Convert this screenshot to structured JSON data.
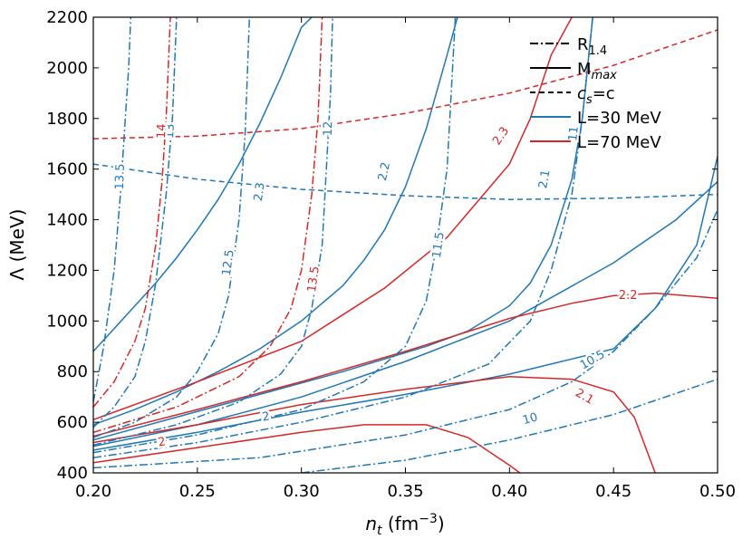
{
  "chart_data": {
    "type": "line",
    "title": "",
    "xlabel": "n",
    "xlabel_sub": "t",
    "xlabel_unit": " (fm",
    "xlabel_exp": "−3",
    "xlabel_close": ")",
    "ylabel": "Λ (MeV)",
    "xlim": [
      0.2,
      0.5
    ],
    "ylim": [
      400,
      2200
    ],
    "xticks": [
      0.2,
      0.25,
      0.3,
      0.35,
      0.4,
      0.45,
      0.5
    ],
    "xtick_labels": [
      "0.20",
      "0.25",
      "0.30",
      "0.35",
      "0.40",
      "0.45",
      "0.50"
    ],
    "yticks": [
      400,
      600,
      800,
      1000,
      1200,
      1400,
      1600,
      1800,
      2000,
      2200
    ],
    "ytick_labels": [
      "400",
      "600",
      "800",
      "1000",
      "1200",
      "1400",
      "1600",
      "1800",
      "2000",
      "2200"
    ],
    "colors": {
      "L30": "#1f77b4",
      "L70": "#d62728"
    },
    "legend": {
      "position": "top-right",
      "entries": [
        {
          "style": "dashdot",
          "color": "#000000",
          "main": "R",
          "sub": "1.4"
        },
        {
          "style": "solid",
          "color": "#000000",
          "main": "M",
          "sub": "max"
        },
        {
          "style": "dashed",
          "color": "#000000",
          "main": "c",
          "sub": "s",
          "tail": "=c"
        },
        {
          "style": "solid",
          "color": "#1f77b4",
          "main": "L=30 MeV",
          "sub": ""
        },
        {
          "style": "solid",
          "color": "#d62728",
          "main": "L=70 MeV",
          "sub": ""
        }
      ]
    },
    "series": [
      {
        "name": "L30 Mmax 2.3",
        "group": "L30",
        "style": "solid",
        "label": "2.3",
        "points": [
          [
            0.2,
            880
          ],
          [
            0.21,
            970
          ],
          [
            0.22,
            1060
          ],
          [
            0.23,
            1150
          ],
          [
            0.24,
            1250
          ],
          [
            0.25,
            1360
          ],
          [
            0.26,
            1480
          ],
          [
            0.27,
            1620
          ],
          [
            0.28,
            1780
          ],
          [
            0.29,
            1960
          ],
          [
            0.3,
            2160
          ],
          [
            0.305,
            2200
          ]
        ]
      },
      {
        "name": "L30 Mmax 2.2",
        "group": "L30",
        "style": "solid",
        "label": "2.2",
        "points": [
          [
            0.2,
            590
          ],
          [
            0.22,
            650
          ],
          [
            0.24,
            720
          ],
          [
            0.26,
            800
          ],
          [
            0.28,
            890
          ],
          [
            0.3,
            1000
          ],
          [
            0.32,
            1140
          ],
          [
            0.33,
            1240
          ],
          [
            0.34,
            1360
          ],
          [
            0.35,
            1530
          ],
          [
            0.36,
            1760
          ],
          [
            0.37,
            2050
          ],
          [
            0.375,
            2200
          ]
        ]
      },
      {
        "name": "L30 Mmax 2.1",
        "group": "L30",
        "style": "solid",
        "label": "2.1",
        "points": [
          [
            0.2,
            530
          ],
          [
            0.24,
            620
          ],
          [
            0.28,
            710
          ],
          [
            0.32,
            800
          ],
          [
            0.36,
            900
          ],
          [
            0.38,
            960
          ],
          [
            0.4,
            1060
          ],
          [
            0.41,
            1150
          ],
          [
            0.42,
            1300
          ],
          [
            0.43,
            1560
          ],
          [
            0.435,
            1800
          ],
          [
            0.44,
            2200
          ]
        ]
      },
      {
        "name": "L30 Mmax 2.0",
        "group": "L30",
        "style": "solid",
        "label": "2",
        "points": [
          [
            0.2,
            490
          ],
          [
            0.25,
            560
          ],
          [
            0.3,
            640
          ],
          [
            0.35,
            710
          ],
          [
            0.4,
            790
          ],
          [
            0.45,
            890
          ],
          [
            0.47,
            1050
          ],
          [
            0.49,
            1300
          ],
          [
            0.5,
            1650
          ]
        ]
      },
      {
        "name": "L30 Mmax lower",
        "group": "L30",
        "style": "solid",
        "label": "",
        "points": [
          [
            0.2,
            505
          ],
          [
            0.25,
            590
          ],
          [
            0.3,
            700
          ],
          [
            0.35,
            840
          ],
          [
            0.4,
            1000
          ],
          [
            0.45,
            1230
          ],
          [
            0.48,
            1400
          ],
          [
            0.5,
            1550
          ]
        ]
      },
      {
        "name": "L70 Mmax 2.3",
        "group": "L70",
        "style": "solid",
        "label": "2.3",
        "points": [
          [
            0.2,
            610
          ],
          [
            0.25,
            760
          ],
          [
            0.3,
            920
          ],
          [
            0.34,
            1130
          ],
          [
            0.37,
            1330
          ],
          [
            0.4,
            1620
          ],
          [
            0.41,
            1800
          ],
          [
            0.42,
            2050
          ],
          [
            0.43,
            2200
          ]
        ]
      },
      {
        "name": "L70 Mmax 2.2",
        "group": "L70",
        "style": "solid",
        "label": "2.2",
        "points": [
          [
            0.2,
            545
          ],
          [
            0.25,
            650
          ],
          [
            0.3,
            760
          ],
          [
            0.35,
            880
          ],
          [
            0.4,
            1010
          ],
          [
            0.43,
            1070
          ],
          [
            0.45,
            1100
          ],
          [
            0.47,
            1110
          ],
          [
            0.5,
            1090
          ]
        ]
      },
      {
        "name": "L70 Mmax 2.1",
        "group": "L70",
        "style": "solid",
        "label": "2.1",
        "points": [
          [
            0.2,
            520
          ],
          [
            0.25,
            590
          ],
          [
            0.3,
            670
          ],
          [
            0.35,
            730
          ],
          [
            0.4,
            780
          ],
          [
            0.43,
            770
          ],
          [
            0.45,
            720
          ],
          [
            0.46,
            620
          ],
          [
            0.47,
            400
          ]
        ]
      },
      {
        "name": "L70 Mmax 2.0",
        "group": "L70",
        "style": "solid",
        "label": "2",
        "points": [
          [
            0.2,
            440
          ],
          [
            0.25,
            500
          ],
          [
            0.3,
            560
          ],
          [
            0.33,
            590
          ],
          [
            0.36,
            590
          ],
          [
            0.38,
            540
          ],
          [
            0.4,
            430
          ],
          [
            0.405,
            400
          ]
        ]
      },
      {
        "name": "L30 R 13.5",
        "group": "L30",
        "style": "dashdot",
        "label": "13.5",
        "points": [
          [
            0.2,
            680
          ],
          [
            0.205,
            900
          ],
          [
            0.21,
            1200
          ],
          [
            0.213,
            1500
          ],
          [
            0.215,
            1750
          ],
          [
            0.217,
            2000
          ],
          [
            0.218,
            2200
          ]
        ]
      },
      {
        "name": "L30 R 13",
        "group": "L30",
        "style": "dashdot",
        "label": "13",
        "points": [
          [
            0.2,
            580
          ],
          [
            0.21,
            660
          ],
          [
            0.22,
            780
          ],
          [
            0.225,
            920
          ],
          [
            0.23,
            1150
          ],
          [
            0.235,
            1500
          ],
          [
            0.238,
            1800
          ],
          [
            0.24,
            2200
          ]
        ]
      },
      {
        "name": "L30 R 12.5",
        "group": "L30",
        "style": "dashdot",
        "label": "12.5",
        "points": [
          [
            0.2,
            540
          ],
          [
            0.22,
            600
          ],
          [
            0.24,
            700
          ],
          [
            0.25,
            800
          ],
          [
            0.26,
            950
          ],
          [
            0.265,
            1100
          ],
          [
            0.27,
            1400
          ],
          [
            0.273,
            1750
          ],
          [
            0.275,
            2200
          ]
        ]
      },
      {
        "name": "L30 R 12",
        "group": "L30",
        "style": "dashdot",
        "label": "12",
        "points": [
          [
            0.2,
            510
          ],
          [
            0.24,
            590
          ],
          [
            0.27,
            680
          ],
          [
            0.29,
            790
          ],
          [
            0.3,
            900
          ],
          [
            0.305,
            1050
          ],
          [
            0.31,
            1300
          ],
          [
            0.312,
            1600
          ],
          [
            0.314,
            1900
          ],
          [
            0.315,
            2200
          ]
        ]
      },
      {
        "name": "L30 R 11.5",
        "group": "L30",
        "style": "dashdot",
        "label": "11.5",
        "points": [
          [
            0.2,
            480
          ],
          [
            0.25,
            550
          ],
          [
            0.3,
            650
          ],
          [
            0.33,
            760
          ],
          [
            0.35,
            900
          ],
          [
            0.36,
            1080
          ],
          [
            0.365,
            1300
          ],
          [
            0.37,
            1600
          ],
          [
            0.372,
            1900
          ],
          [
            0.374,
            2200
          ]
        ]
      },
      {
        "name": "L30 R 11",
        "group": "L30",
        "style": "dashdot",
        "label": "11",
        "points": [
          [
            0.2,
            460
          ],
          [
            0.25,
            520
          ],
          [
            0.3,
            600
          ],
          [
            0.35,
            700
          ],
          [
            0.39,
            830
          ],
          [
            0.41,
            1000
          ],
          [
            0.42,
            1200
          ],
          [
            0.43,
            1500
          ],
          [
            0.435,
            1800
          ],
          [
            0.44,
            2200
          ]
        ]
      },
      {
        "name": "L30 R 10.5",
        "group": "L30",
        "style": "dashdot",
        "label": "10.5",
        "points": [
          [
            0.2,
            420
          ],
          [
            0.28,
            460
          ],
          [
            0.35,
            550
          ],
          [
            0.4,
            650
          ],
          [
            0.43,
            760
          ],
          [
            0.45,
            880
          ],
          [
            0.47,
            1050
          ],
          [
            0.49,
            1250
          ],
          [
            0.5,
            1440
          ]
        ]
      },
      {
        "name": "L30 R 10",
        "group": "L30",
        "style": "dashdot",
        "label": "10",
        "points": [
          [
            0.3,
            400
          ],
          [
            0.35,
            450
          ],
          [
            0.4,
            530
          ],
          [
            0.45,
            630
          ],
          [
            0.5,
            770
          ]
        ]
      },
      {
        "name": "L70 R 14",
        "group": "L70",
        "style": "dashdot",
        "label": "14",
        "points": [
          [
            0.2,
            660
          ],
          [
            0.21,
            760
          ],
          [
            0.22,
            920
          ],
          [
            0.225,
            1050
          ],
          [
            0.23,
            1300
          ],
          [
            0.233,
            1550
          ],
          [
            0.235,
            1800
          ],
          [
            0.237,
            2200
          ]
        ]
      },
      {
        "name": "L70 R 13.5",
        "group": "L70",
        "style": "dashdot",
        "label": "13.5",
        "points": [
          [
            0.2,
            560
          ],
          [
            0.24,
            660
          ],
          [
            0.27,
            780
          ],
          [
            0.285,
            900
          ],
          [
            0.295,
            1050
          ],
          [
            0.3,
            1200
          ],
          [
            0.305,
            1500
          ],
          [
            0.308,
            1800
          ],
          [
            0.31,
            2200
          ]
        ]
      },
      {
        "name": "L30 cs=c",
        "group": "L30",
        "style": "dashed",
        "label": "",
        "points": [
          [
            0.2,
            1620
          ],
          [
            0.25,
            1560
          ],
          [
            0.3,
            1520
          ],
          [
            0.35,
            1495
          ],
          [
            0.4,
            1480
          ],
          [
            0.45,
            1485
          ],
          [
            0.5,
            1500
          ]
        ]
      },
      {
        "name": "L70 cs=c",
        "group": "L70",
        "style": "dashed",
        "label": "",
        "points": [
          [
            0.2,
            1720
          ],
          [
            0.25,
            1730
          ],
          [
            0.3,
            1760
          ],
          [
            0.35,
            1820
          ],
          [
            0.4,
            1900
          ],
          [
            0.45,
            2010
          ],
          [
            0.5,
            2150
          ]
        ]
      }
    ],
    "contour_labels": [
      {
        "text": "13.5",
        "group": "L30",
        "x": 0.213,
        "y": 1570,
        "rot": -88
      },
      {
        "text": "13",
        "group": "L30",
        "x": 0.237,
        "y": 1750,
        "rot": -88
      },
      {
        "text": "14",
        "group": "L70",
        "x": 0.233,
        "y": 1750,
        "rot": -88
      },
      {
        "text": "12.5",
        "group": "L30",
        "x": 0.265,
        "y": 1230,
        "rot": -82
      },
      {
        "text": "2.3",
        "group": "L30",
        "x": 0.28,
        "y": 1510,
        "rot": -82
      },
      {
        "text": "12",
        "group": "L30",
        "x": 0.313,
        "y": 1760,
        "rot": -88
      },
      {
        "text": "13.5",
        "group": "L70",
        "x": 0.306,
        "y": 1165,
        "rot": -82
      },
      {
        "text": "2.2",
        "group": "L30",
        "x": 0.34,
        "y": 1590,
        "rot": -78
      },
      {
        "text": "11.5",
        "group": "L30",
        "x": 0.366,
        "y": 1300,
        "rot": -82
      },
      {
        "text": "11",
        "group": "L30",
        "x": 0.431,
        "y": 1740,
        "rot": -84
      },
      {
        "text": "2.1",
        "group": "L30",
        "x": 0.417,
        "y": 1560,
        "rot": -80
      },
      {
        "text": "2.3",
        "group": "L70",
        "x": 0.396,
        "y": 1730,
        "rot": -55
      },
      {
        "text": "2.2",
        "group": "L70",
        "x": 0.457,
        "y": 1100,
        "rot": 0
      },
      {
        "text": "10.5",
        "group": "L30",
        "x": 0.44,
        "y": 845,
        "rot": -30
      },
      {
        "text": "2.1",
        "group": "L70",
        "x": 0.436,
        "y": 700,
        "rot": 30
      },
      {
        "text": "10",
        "group": "L30",
        "x": 0.41,
        "y": 612,
        "rot": -16
      },
      {
        "text": "2",
        "group": "L30",
        "x": 0.283,
        "y": 620,
        "rot": -10
      },
      {
        "text": "2",
        "group": "L70",
        "x": 0.233,
        "y": 520,
        "rot": -10
      }
    ]
  }
}
